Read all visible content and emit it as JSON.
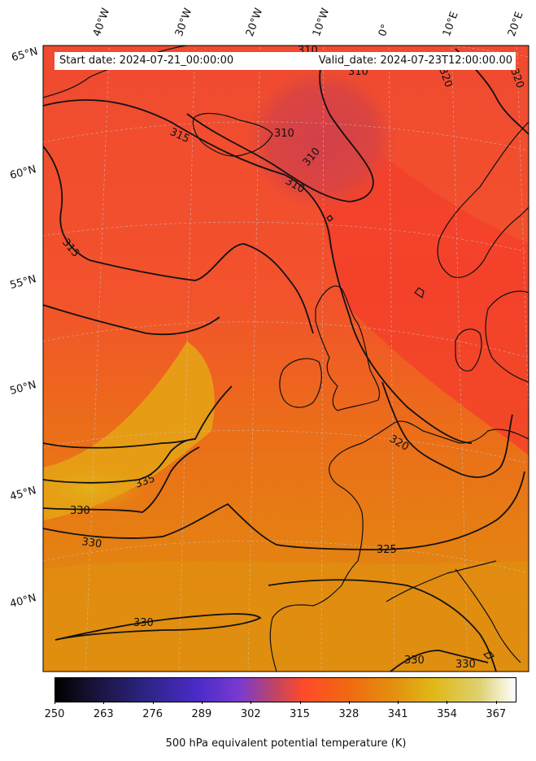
{
  "map": {
    "start_date": "Start date: 2024-07-21_00:00:00",
    "valid_date": "Valid_date: 2024-07-23T12:00:00.00",
    "lon_labels": [
      "40°W",
      "30°W",
      "20°W",
      "10°W",
      "0°",
      "10°E",
      "20°E"
    ],
    "lat_labels": [
      "65°N",
      "60°N",
      "55°N",
      "50°N",
      "45°N",
      "40°N"
    ],
    "contour_labels": [
      "315",
      "310",
      "310",
      "310",
      "315",
      "320",
      "320",
      "335",
      "330",
      "330",
      "325",
      "330",
      "330",
      "330",
      "310",
      "310",
      "320"
    ]
  },
  "colorbar": {
    "label": "500 hPa equivalent potential temperature (K)",
    "ticks": [
      "250",
      "263",
      "276",
      "289",
      "302",
      "315",
      "328",
      "341",
      "354",
      "367"
    ],
    "range": [
      250,
      372
    ],
    "colors": [
      "#000000",
      "#2b2480",
      "#4b2bc8",
      "#ff4a2a",
      "#e39210",
      "#e0b816",
      "#ffffff"
    ]
  }
}
